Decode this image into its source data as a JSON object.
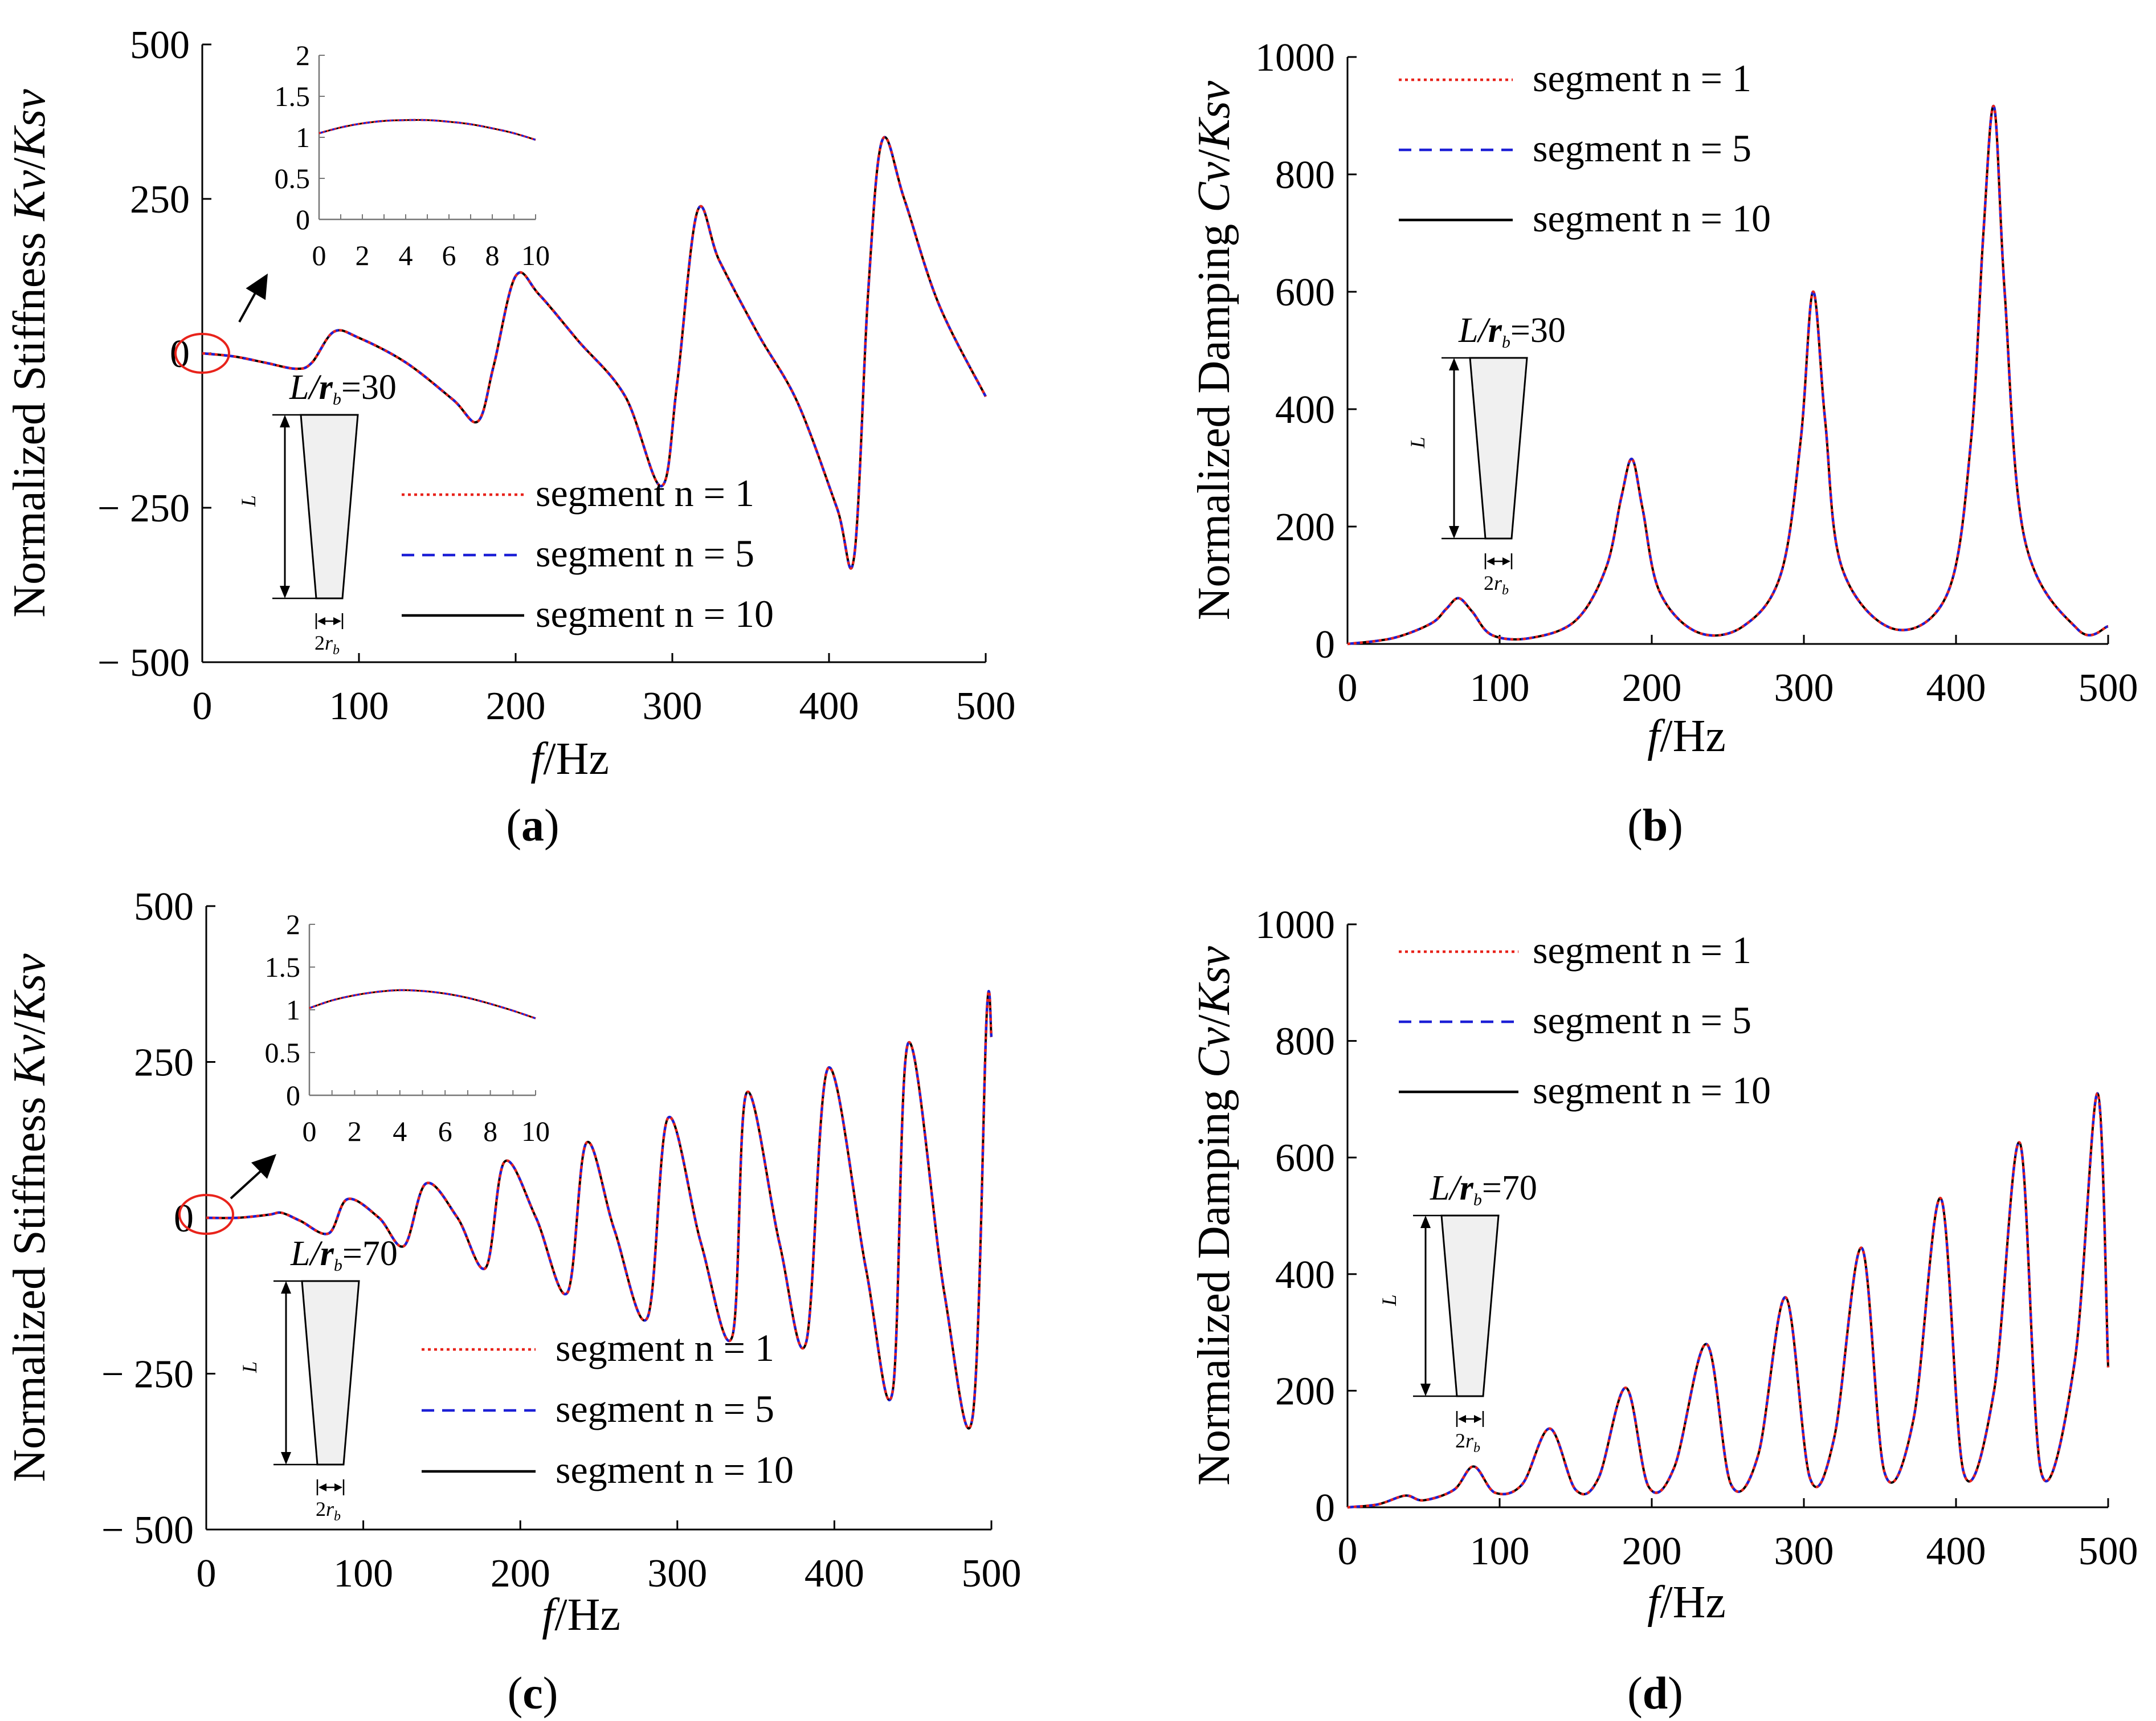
{
  "colors": {
    "n1": "#e8231b",
    "n5": "#1c1fd6",
    "n10": "#000000",
    "highlight": "#e8231b",
    "shape_fill": "#f0f0f0"
  },
  "chart_data": [
    {
      "type": "line",
      "panel": "a",
      "caption": "(a)",
      "ratio": "30",
      "xlabel": "f/Hz",
      "ylabel": "Normalized Stiffness Kv/Ksv",
      "xlim": [
        0,
        500
      ],
      "ylim": [
        -500,
        500
      ],
      "xticks": [
        "0",
        "100",
        "200",
        "300",
        "400",
        "500"
      ],
      "yticks": [
        "− 500",
        "− 250",
        "0",
        "250",
        "500"
      ],
      "legend": [
        "segment n = 1",
        "segment n = 5",
        "segment n = 10"
      ],
      "series": [
        {
          "name": "segment n = 1",
          "style": "dotted",
          "color": "#e8231b"
        },
        {
          "name": "segment n = 5",
          "style": "dashed",
          "color": "#1c1fd6"
        },
        {
          "name": "segment n = 10",
          "style": "solid",
          "color": "#000000"
        }
      ],
      "x": [
        0,
        20,
        40,
        60,
        70,
        84,
        100,
        130,
        160,
        176,
        186,
        200,
        215,
        240,
        270,
        293,
        303,
        316,
        330,
        355,
        380,
        405,
        416,
        425,
        434,
        448,
        470,
        500
      ],
      "y": [
        0,
        -5,
        -15,
        -25,
        -15,
        35,
        25,
        -15,
        -75,
        -110,
        -20,
        125,
        95,
        20,
        -70,
        -215,
        -50,
        230,
        150,
        30,
        -80,
        -250,
        -330,
        100,
        345,
        250,
        80,
        -70
      ],
      "inset": {
        "xlim": [
          0,
          10
        ],
        "ylim": [
          0,
          2
        ],
        "xticks": [
          "0",
          "2",
          "4",
          "6",
          "8",
          "10"
        ],
        "yticks": [
          "0",
          "0.5",
          "1",
          "1.5",
          "2"
        ],
        "x": [
          0,
          1,
          2,
          3,
          4,
          5,
          6,
          7,
          8,
          9,
          10
        ],
        "y": [
          1.05,
          1.12,
          1.17,
          1.2,
          1.21,
          1.21,
          1.19,
          1.16,
          1.11,
          1.05,
          0.97
        ]
      }
    },
    {
      "type": "line",
      "panel": "b",
      "caption": "(b)",
      "ratio": "30",
      "xlabel": "f/Hz",
      "ylabel": "Normalized Damping Cv/Ksv",
      "xlim": [
        0,
        500
      ],
      "ylim": [
        0,
        1000
      ],
      "xticks": [
        "0",
        "100",
        "200",
        "300",
        "400",
        "500"
      ],
      "yticks": [
        "0",
        "200",
        "400",
        "600",
        "800",
        "1000"
      ],
      "legend": [
        "segment n = 1",
        "segment n = 5",
        "segment n = 10"
      ],
      "series": [
        {
          "name": "segment n = 1",
          "style": "dotted",
          "color": "#e8231b"
        },
        {
          "name": "segment n = 5",
          "style": "dashed",
          "color": "#1c1fd6"
        },
        {
          "name": "segment n = 10",
          "style": "solid",
          "color": "#000000"
        }
      ],
      "x": [
        0,
        30,
        55,
        65,
        73,
        82,
        95,
        120,
        150,
        170,
        180,
        187,
        194,
        205,
        230,
        260,
        285,
        298,
        306,
        314,
        325,
        360,
        395,
        410,
        418,
        425,
        432,
        445,
        480,
        500
      ],
      "y": [
        0,
        10,
        35,
        60,
        78,
        55,
        15,
        10,
        40,
        130,
        250,
        315,
        230,
        90,
        20,
        30,
        120,
        350,
        600,
        380,
        130,
        25,
        90,
        350,
        700,
        915,
        600,
        180,
        25,
        30
      ]
    },
    {
      "type": "line",
      "panel": "c",
      "caption": "(c)",
      "ratio": "70",
      "xlabel": "f/Hz",
      "ylabel": "Normalized Stiffness Kv/Ksv",
      "xlim": [
        0,
        500
      ],
      "ylim": [
        -500,
        500
      ],
      "xticks": [
        "0",
        "100",
        "200",
        "300",
        "400",
        "500"
      ],
      "yticks": [
        "− 500",
        "− 250",
        "0",
        "250",
        "500"
      ],
      "legend": [
        "segment n = 1",
        "segment n = 5",
        "segment n = 10"
      ],
      "series": [
        {
          "name": "segment n = 1",
          "style": "dotted",
          "color": "#e8231b"
        },
        {
          "name": "segment n = 5",
          "style": "dashed",
          "color": "#1c1fd6"
        },
        {
          "name": "segment n = 10",
          "style": "solid",
          "color": "#000000"
        }
      ],
      "x": [
        0,
        20,
        40,
        48,
        60,
        78,
        90,
        110,
        126,
        140,
        160,
        178,
        190,
        210,
        230,
        242,
        260,
        281,
        294,
        315,
        335,
        344,
        365,
        382,
        396,
        420,
        437,
        447,
        470,
        488,
        497,
        500
      ],
      "y": [
        0,
        0,
        5,
        8,
        -5,
        -25,
        30,
        0,
        -45,
        55,
        0,
        -80,
        90,
        0,
        -120,
        120,
        -20,
        -160,
        160,
        -40,
        -190,
        200,
        -40,
        -200,
        240,
        -80,
        -280,
        280,
        -120,
        -320,
        325,
        290
      ],
      "inset": {
        "xlim": [
          0,
          10
        ],
        "ylim": [
          0,
          2
        ],
        "xticks": [
          "0",
          "2",
          "4",
          "6",
          "8",
          "10"
        ],
        "yticks": [
          "0",
          "0.5",
          "1",
          "1.5",
          "2"
        ],
        "x": [
          0,
          1,
          2,
          3,
          4,
          5,
          6,
          7,
          8,
          9,
          10
        ],
        "y": [
          1.02,
          1.11,
          1.17,
          1.21,
          1.23,
          1.22,
          1.19,
          1.14,
          1.07,
          0.99,
          0.9
        ]
      }
    },
    {
      "type": "line",
      "panel": "d",
      "caption": "(d)",
      "ratio": "70",
      "xlabel": "f/Hz",
      "ylabel": "Normalized Damping Cv/Ksv",
      "xlim": [
        0,
        500
      ],
      "ylim": [
        0,
        1000
      ],
      "xticks": [
        "0",
        "100",
        "200",
        "300",
        "400",
        "500"
      ],
      "yticks": [
        "0",
        "200",
        "400",
        "600",
        "800",
        "1000"
      ],
      "legend": [
        "segment n = 1",
        "segment n = 5",
        "segment n = 10"
      ],
      "series": [
        {
          "name": "segment n = 1",
          "style": "dotted",
          "color": "#e8231b"
        },
        {
          "name": "segment n = 5",
          "style": "dashed",
          "color": "#1c1fd6"
        },
        {
          "name": "segment n = 10",
          "style": "solid",
          "color": "#000000"
        }
      ],
      "x": [
        0,
        20,
        38,
        50,
        70,
        83,
        97,
        115,
        133,
        150,
        165,
        183,
        198,
        215,
        236,
        252,
        270,
        288,
        304,
        320,
        338,
        353,
        372,
        390,
        405,
        425,
        442,
        456,
        478,
        493,
        500
      ],
      "y": [
        0,
        5,
        20,
        12,
        30,
        70,
        25,
        40,
        135,
        30,
        50,
        205,
        35,
        70,
        280,
        40,
        90,
        360,
        50,
        120,
        445,
        60,
        150,
        530,
        60,
        200,
        625,
        60,
        250,
        710,
        240
      ]
    }
  ]
}
